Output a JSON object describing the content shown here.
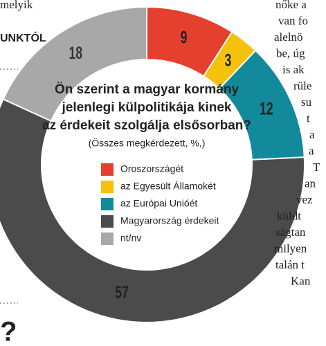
{
  "chart_data": {
    "type": "donut",
    "title": "Ön szerint a magyar kormány jelenlegi külpolitikája kinek az érdekeit szolgálja elsősorban?",
    "subtitle": "(Összes megkérdezett, %,)",
    "categories": [
      "Oroszországét",
      "az Egyesült Államokét",
      "az Európai Unióét",
      "Magyarország érdekeit",
      "nt/nv"
    ],
    "values": [
      9,
      3,
      12,
      57,
      18
    ],
    "colors": [
      "#e5402d",
      "#f4c20d",
      "#138a9b",
      "#4b4b4b",
      "#a8a8a8"
    ]
  },
  "left_column": {
    "lines": [
      "melyik",
      "UNKTÓL",
      "?"
    ]
  },
  "right_column": {
    "lines": [
      "nőke a",
      "van fo",
      "alelnö",
      "be, úg",
      "is ak",
      "rüle",
      "su",
      "t",
      "a",
      "a",
      "T",
      "an",
      "vez",
      "küldt",
      "ságtan",
      "milyen",
      "talán t",
      "Kan"
    ]
  }
}
